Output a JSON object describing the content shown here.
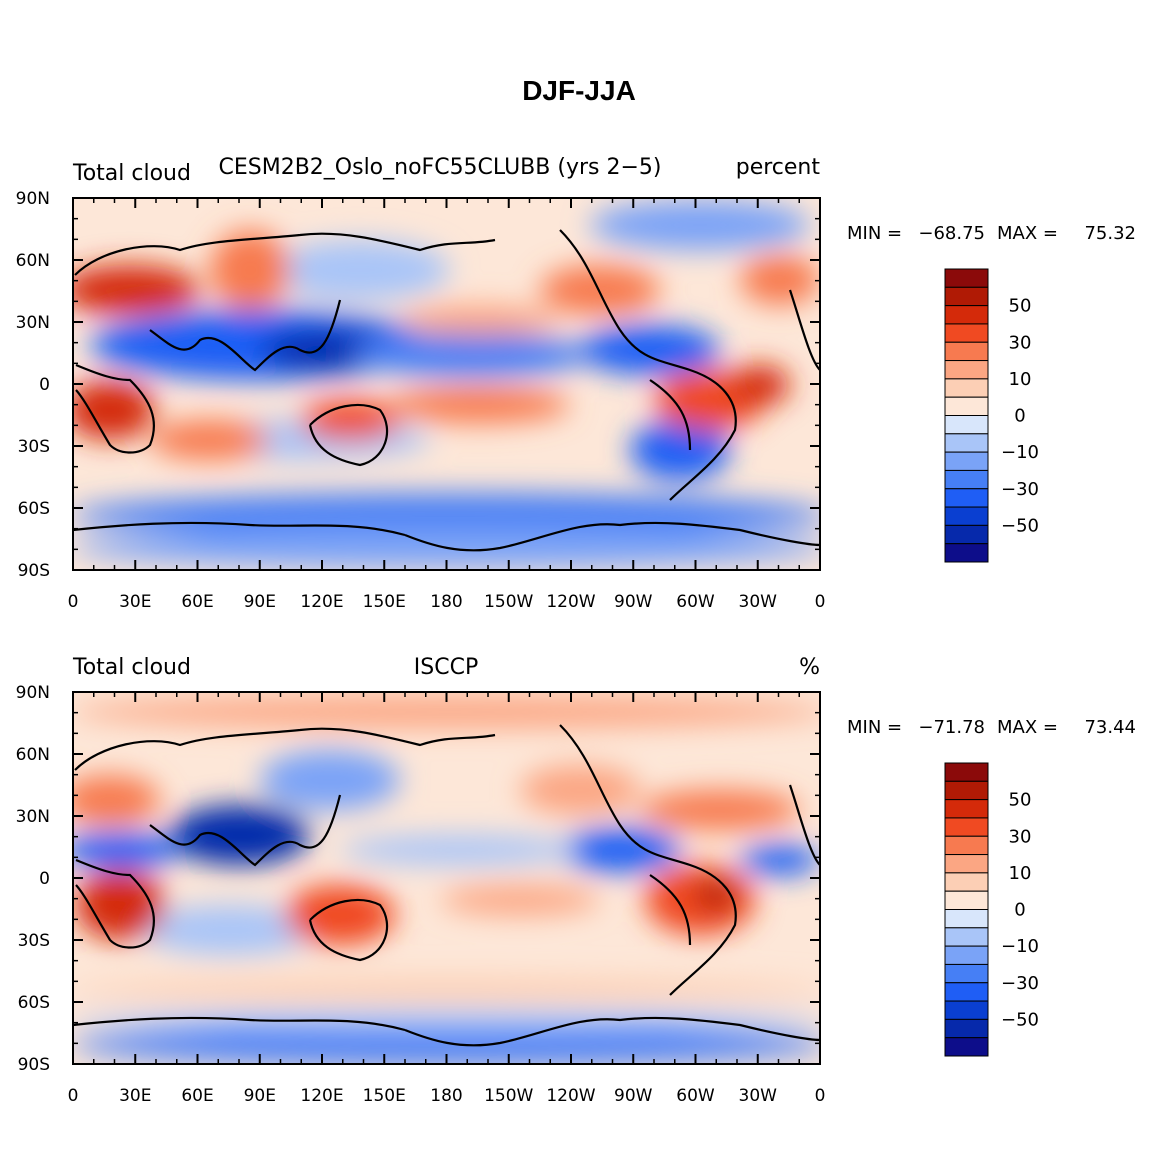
{
  "figure_title": "DJF-JJA",
  "colorbar_colors": [
    "#0d0d8a",
    "#0629ab",
    "#0a3fd1",
    "#1f5ef5",
    "#467ff5",
    "#7aa3f7",
    "#a9c5f8",
    "#d8e6fb",
    "#fde7d8",
    "#fccfb5",
    "#fba683",
    "#f77a50",
    "#f04a22",
    "#d42a0a",
    "#b01a05",
    "#8b0a0a"
  ],
  "colorbar_ticks": [
    "50",
    "30",
    "10",
    "0",
    "−10",
    "−30",
    "−50"
  ],
  "x_ticks": [
    "0",
    "30E",
    "60E",
    "90E",
    "120E",
    "150E",
    "180",
    "150W",
    "120W",
    "90W",
    "60W",
    "30W",
    "0"
  ],
  "y_ticks": [
    "90N",
    "60N",
    "30N",
    "0",
    "30S",
    "60S",
    "90S"
  ],
  "panels": [
    {
      "left_title": "Total cloud",
      "center_title": "CESM2B2_Oslo_noFC55CLUBB (yrs 2−5)",
      "right_title": "percent",
      "min_label": "MIN =",
      "min_value": "−68.75",
      "max_label": "MAX =",
      "max_value": "75.32"
    },
    {
      "left_title": "Total cloud",
      "center_title": "ISCCP",
      "right_title": "%",
      "min_label": "MIN =",
      "min_value": "−71.78",
      "max_label": "MAX =",
      "max_value": "73.44"
    }
  ]
}
